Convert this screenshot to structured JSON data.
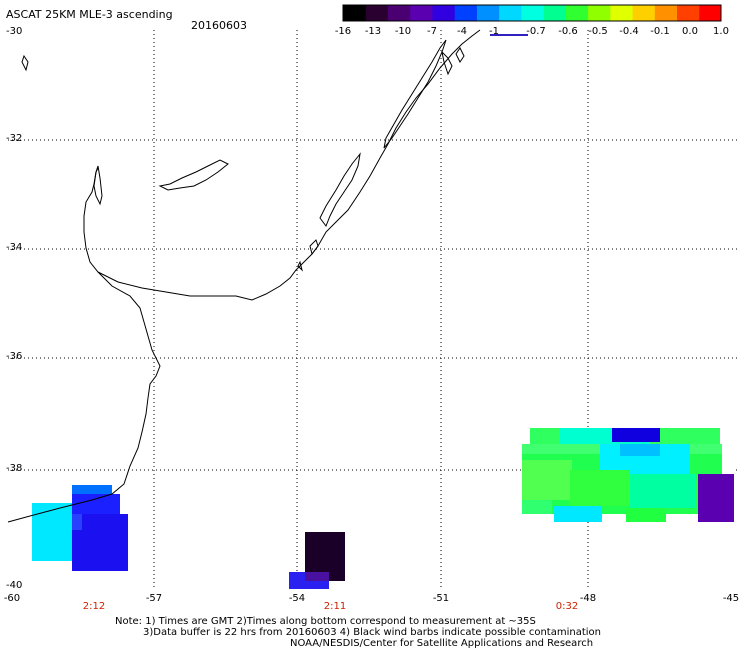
{
  "header": {
    "title": "ASCAT 25KM MLE-3 ascending",
    "date": "20160603"
  },
  "colorbar": {
    "labels": [
      "-16",
      "-13",
      "-10",
      "-7",
      "-4",
      "-1",
      "-0.7",
      "-0.6",
      "-0.5",
      "-0.4",
      "-0.1",
      "0.0",
      "1.0"
    ],
    "colors": [
      "#000000",
      "#2a0030",
      "#4a0070",
      "#5a00b0",
      "#3000e0",
      "#0040ff",
      "#0090ff",
      "#00d8ff",
      "#00ffe0",
      "#00ff90",
      "#30ff30",
      "#90ff00",
      "#e0ff00",
      "#ffd000",
      "#ff9000",
      "#ff4000",
      "#ff0000"
    ]
  },
  "axes": {
    "lat_labels": [
      "-30",
      "-32",
      "-34",
      "-36",
      "-38",
      "-40"
    ],
    "lon_labels": [
      "-60",
      "-57",
      "-54",
      "-51",
      "-48",
      "-45"
    ],
    "time_labels": [
      "2:12",
      "2:11",
      "0:32"
    ]
  },
  "notes": {
    "line1": "Note: 1) Times are GMT 2)Times along bottom correspond to measurement at ~35S",
    "line2": "3)Data buffer is 22 hrs from 20160603 4) Black wind barbs indicate possible contamination",
    "line3": "NOAA/NESDIS/Center for Satellite Applications and Research"
  },
  "colors": {
    "time_label": "#cc2200",
    "coastline": "#000000",
    "grid": "#000000"
  }
}
